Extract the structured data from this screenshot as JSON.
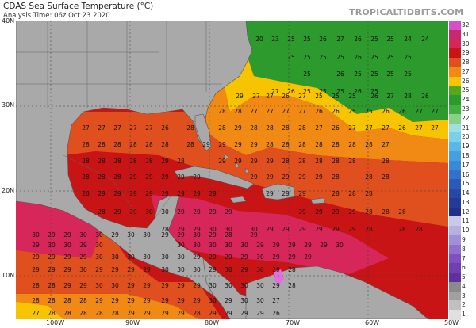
{
  "header": {
    "title": "CDAS Sea Surface Temperature (°C)",
    "analysis_time": "Analysis Time: 06z Oct 23 2020",
    "credit": "TROPICALTIDBITS.COM"
  },
  "axes": {
    "lat_labels": [
      "40N",
      "30N",
      "20N",
      "10N"
    ],
    "lon_labels": [
      "100W",
      "90W",
      "80W",
      "70W",
      "60W",
      "50W"
    ]
  },
  "colorbar": {
    "labels": [
      "32",
      "31",
      "30",
      "29",
      "28",
      "27",
      "26",
      "25",
      "24",
      "23",
      "22",
      "21",
      "20",
      "19",
      "18",
      "17",
      "16",
      "15",
      "14",
      "13",
      "12",
      "11",
      "10",
      "9",
      "8",
      "7",
      "6",
      "5",
      "4",
      "3",
      "2",
      "1"
    ],
    "colors": [
      "#d64ec8",
      "#c8286e",
      "#d6265a",
      "#c81414",
      "#e0501e",
      "#f08a14",
      "#f6c400",
      "#54a81c",
      "#2c9a2c",
      "#40b040",
      "#88d088",
      "#9ee0e0",
      "#7ad0e8",
      "#5ab8e8",
      "#46a0e0",
      "#3a88d8",
      "#3470cc",
      "#2c5ab8",
      "#2848a8",
      "#243a98",
      "#203088",
      "#c8c8e8",
      "#b4b0e0",
      "#a090d8",
      "#9070cc",
      "#8050c0",
      "#7040b0",
      "#6030a0",
      "#8a8a8a",
      "#a0a0a0",
      "#c0c0c0",
      "#e0e0e0"
    ]
  },
  "map_labels": [
    {
      "v": "20"
    },
    {
      "v": "23"
    },
    {
      "v": "25"
    },
    {
      "v": "25"
    },
    {
      "v": "26"
    },
    {
      "v": "27"
    },
    {
      "v": "26"
    },
    {
      "v": "25"
    },
    {
      "v": "25"
    },
    {
      "v": "24"
    },
    {
      "v": "24"
    },
    {
      "v": "25"
    },
    {
      "v": "25"
    },
    {
      "v": "25"
    },
    {
      "v": "25"
    },
    {
      "v": "26"
    },
    {
      "v": "25"
    },
    {
      "v": "25"
    },
    {
      "v": "25"
    },
    {
      "v": "25"
    },
    {
      "v": "26"
    },
    {
      "v": "25"
    },
    {
      "v": "25"
    },
    {
      "v": "25"
    },
    {
      "v": "25"
    },
    {
      "v": "27"
    },
    {
      "v": "26"
    },
    {
      "v": "25"
    },
    {
      "v": "25"
    },
    {
      "v": "25"
    },
    {
      "v": "26"
    },
    {
      "v": "25"
    },
    {
      "v": "29"
    },
    {
      "v": "27"
    },
    {
      "v": "27"
    },
    {
      "v": "26"
    },
    {
      "v": "27"
    },
    {
      "v": "25"
    },
    {
      "v": "25"
    },
    {
      "v": "25"
    },
    {
      "v": "26"
    },
    {
      "v": "27"
    },
    {
      "v": "28"
    },
    {
      "v": "26"
    },
    {
      "v": "28"
    },
    {
      "v": "28"
    },
    {
      "v": "27"
    },
    {
      "v": "27"
    },
    {
      "v": "27"
    },
    {
      "v": "27"
    },
    {
      "v": "26"
    },
    {
      "v": "26"
    },
    {
      "v": "25"
    },
    {
      "v": "25"
    },
    {
      "v": "26"
    },
    {
      "v": "26"
    },
    {
      "v": "27"
    },
    {
      "v": "27"
    },
    {
      "v": "27"
    },
    {
      "v": "27"
    },
    {
      "v": "27"
    },
    {
      "v": "27"
    },
    {
      "v": "27"
    },
    {
      "v": "26"
    },
    {
      "v": "28"
    },
    {
      "v": "28"
    },
    {
      "v": "29"
    },
    {
      "v": "28"
    },
    {
      "v": "28"
    },
    {
      "v": "28"
    },
    {
      "v": "28"
    },
    {
      "v": "27"
    },
    {
      "v": "26"
    },
    {
      "v": "27"
    },
    {
      "v": "27"
    },
    {
      "v": "27"
    },
    {
      "v": "26"
    },
    {
      "v": "27"
    },
    {
      "v": "27"
    },
    {
      "v": "28"
    },
    {
      "v": "28"
    },
    {
      "v": "28"
    },
    {
      "v": "28"
    },
    {
      "v": "28"
    },
    {
      "v": "28"
    },
    {
      "v": "28"
    },
    {
      "v": "29"
    },
    {
      "v": "29"
    },
    {
      "v": "29"
    },
    {
      "v": "29"
    },
    {
      "v": "28"
    },
    {
      "v": "28"
    },
    {
      "v": "28"
    },
    {
      "v": "28"
    },
    {
      "v": "28"
    },
    {
      "v": "28"
    },
    {
      "v": "28"
    },
    {
      "v": "27"
    },
    {
      "v": "28"
    },
    {
      "v": "28"
    },
    {
      "v": "28"
    },
    {
      "v": "28"
    },
    {
      "v": "28"
    },
    {
      "v": "29"
    },
    {
      "v": "28"
    },
    {
      "v": "29"
    },
    {
      "v": "29"
    },
    {
      "v": "29"
    },
    {
      "v": "29"
    },
    {
      "v": "28"
    },
    {
      "v": "28"
    },
    {
      "v": "28"
    },
    {
      "v": "28"
    },
    {
      "v": "28"
    },
    {
      "v": "28"
    },
    {
      "v": "28"
    },
    {
      "v": "28"
    },
    {
      "v": "28"
    },
    {
      "v": "29"
    },
    {
      "v": "29"
    },
    {
      "v": "29"
    },
    {
      "v": "29"
    },
    {
      "v": "29"
    },
    {
      "v": "29"
    },
    {
      "v": "29"
    },
    {
      "v": "29"
    },
    {
      "v": "29"
    },
    {
      "v": "29"
    },
    {
      "v": "28"
    },
    {
      "v": "28"
    },
    {
      "v": "28"
    },
    {
      "v": "28"
    },
    {
      "v": "29"
    },
    {
      "v": "29"
    },
    {
      "v": "29"
    },
    {
      "v": "29"
    },
    {
      "v": "29"
    },
    {
      "v": "29"
    },
    {
      "v": "29"
    },
    {
      "v": "29"
    },
    {
      "v": "29"
    },
    {
      "v": "29"
    },
    {
      "v": "29"
    },
    {
      "v": "28"
    },
    {
      "v": "28"
    },
    {
      "v": "28"
    },
    {
      "v": "28"
    },
    {
      "v": "29"
    },
    {
      "v": "29"
    },
    {
      "v": "30"
    },
    {
      "v": "30"
    },
    {
      "v": "29"
    },
    {
      "v": "29"
    },
    {
      "v": "29"
    },
    {
      "v": "29"
    },
    {
      "v": "29"
    },
    {
      "v": "29"
    },
    {
      "v": "29"
    },
    {
      "v": "29"
    },
    {
      "v": "28"
    },
    {
      "v": "28"
    },
    {
      "v": "28"
    },
    {
      "v": "28"
    },
    {
      "v": "29"
    },
    {
      "v": "29"
    },
    {
      "v": "30"
    },
    {
      "v": "30"
    },
    {
      "v": "30"
    },
    {
      "v": "29"
    },
    {
      "v": "29"
    },
    {
      "v": "29"
    },
    {
      "v": "29"
    },
    {
      "v": "29"
    },
    {
      "v": "29"
    },
    {
      "v": "28"
    },
    {
      "v": "28"
    },
    {
      "v": "28"
    },
    {
      "v": "30"
    },
    {
      "v": "29"
    },
    {
      "v": "29"
    },
    {
      "v": "30"
    },
    {
      "v": "30"
    },
    {
      "v": "29"
    },
    {
      "v": "30"
    },
    {
      "v": "30"
    },
    {
      "v": "29"
    },
    {
      "v": "29"
    },
    {
      "v": "30"
    },
    {
      "v": "29"
    },
    {
      "v": "28"
    },
    {
      "v": "29"
    },
    {
      "v": "29"
    },
    {
      "v": "30"
    },
    {
      "v": "30"
    },
    {
      "v": "29"
    },
    {
      "v": "30"
    },
    {
      "v": "30"
    },
    {
      "v": "30"
    },
    {
      "v": "30"
    },
    {
      "v": "30"
    },
    {
      "v": "30"
    },
    {
      "v": "29"
    },
    {
      "v": "29"
    },
    {
      "v": "29"
    },
    {
      "v": "29"
    },
    {
      "v": "29"
    },
    {
      "v": "30"
    },
    {
      "v": "29"
    },
    {
      "v": "29"
    },
    {
      "v": "29"
    },
    {
      "v": "29"
    },
    {
      "v": "30"
    },
    {
      "v": "30"
    },
    {
      "v": "30"
    },
    {
      "v": "30"
    },
    {
      "v": "30"
    },
    {
      "v": "30"
    },
    {
      "v": "29"
    },
    {
      "v": "29"
    },
    {
      "v": "29"
    },
    {
      "v": "29"
    },
    {
      "v": "30"
    },
    {
      "v": "29"
    },
    {
      "v": "29"
    },
    {
      "v": "29"
    },
    {
      "v": "29"
    },
    {
      "v": "29"
    },
    {
      "v": "29"
    },
    {
      "v": "30"
    },
    {
      "v": "29"
    },
    {
      "v": "29"
    },
    {
      "v": "29"
    },
    {
      "v": "29"
    },
    {
      "v": "30"
    },
    {
      "v": "30"
    },
    {
      "v": "30"
    },
    {
      "v": "29"
    },
    {
      "v": "30"
    },
    {
      "v": "29"
    },
    {
      "v": "30"
    },
    {
      "v": "29"
    },
    {
      "v": "28"
    },
    {
      "v": "28"
    },
    {
      "v": "28"
    },
    {
      "v": "29"
    },
    {
      "v": "29"
    },
    {
      "v": "30"
    },
    {
      "v": "30"
    },
    {
      "v": "29"
    },
    {
      "v": "29"
    },
    {
      "v": "29"
    },
    {
      "v": "29"
    },
    {
      "v": "29"
    },
    {
      "v": "30"
    },
    {
      "v": "30"
    },
    {
      "v": "30"
    },
    {
      "v": "30"
    },
    {
      "v": "29"
    },
    {
      "v": "28"
    },
    {
      "v": "28"
    },
    {
      "v": "28"
    },
    {
      "v": "28"
    },
    {
      "v": "28"
    },
    {
      "v": "29"
    },
    {
      "v": "29"
    },
    {
      "v": "29"
    },
    {
      "v": "29"
    },
    {
      "v": "29"
    },
    {
      "v": "29"
    },
    {
      "v": "29"
    },
    {
      "v": "30"
    },
    {
      "v": "29"
    },
    {
      "v": "30"
    },
    {
      "v": "30"
    },
    {
      "v": "27"
    },
    {
      "v": "27"
    },
    {
      "v": "28"
    },
    {
      "v": "28"
    },
    {
      "v": "28"
    },
    {
      "v": "28"
    },
    {
      "v": "28"
    },
    {
      "v": "29"
    },
    {
      "v": "29"
    },
    {
      "v": "29"
    },
    {
      "v": "29"
    },
    {
      "v": "28"
    },
    {
      "v": "29"
    },
    {
      "v": "29"
    },
    {
      "v": "29"
    },
    {
      "v": "29"
    },
    {
      "v": "26"
    },
    {
      "v": "26"
    },
    {
      "v": "26"
    },
    {
      "v": "27"
    },
    {
      "v": "27"
    },
    {
      "v": "27"
    },
    {
      "v": "27"
    },
    {
      "v": "27"
    },
    {
      "v": "28"
    },
    {
      "v": "28"
    },
    {
      "v": "28"
    },
    {
      "v": "29"
    },
    {
      "v": "28"
    },
    {
      "v": "28"
    },
    {
      "v": "29"
    },
    {
      "v": "29"
    }
  ]
}
